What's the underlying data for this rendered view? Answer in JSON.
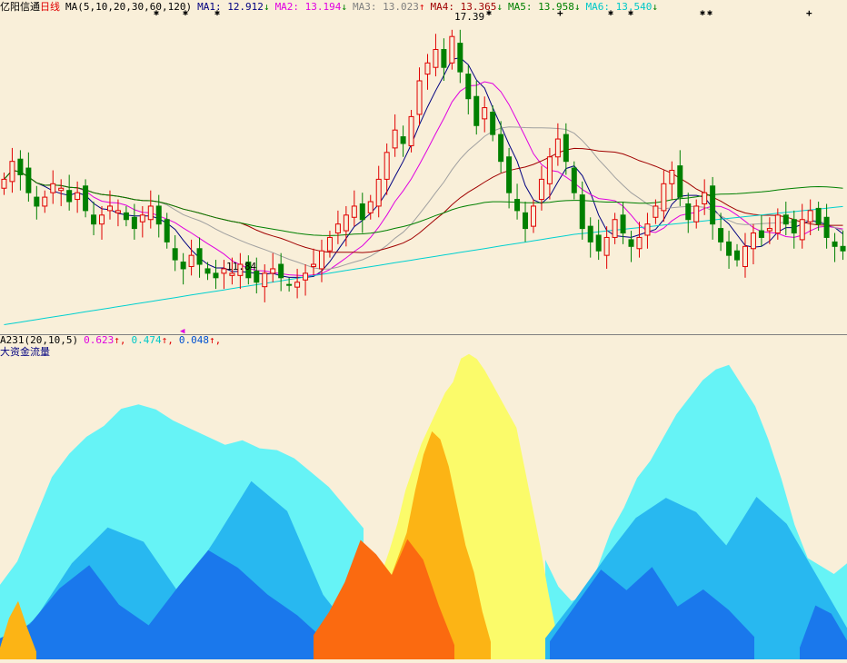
{
  "stock": {
    "name": "亿阳信通",
    "period": "日线"
  },
  "ma_header": {
    "label": "MA(5,10,20,30,60,120)",
    "items": [
      {
        "key": "MA1:",
        "value": "12.912",
        "arrow": "↓",
        "color": "#000080"
      },
      {
        "key": "MA2:",
        "value": "13.194",
        "arrow": "↓",
        "color": "#e000e0"
      },
      {
        "key": "MA3:",
        "value": "13.023",
        "arrow": "↑",
        "color": "#808080"
      },
      {
        "key": "MA4:",
        "value": "13.365",
        "arrow": "↓",
        "color": "#a00000"
      },
      {
        "key": "MA5:",
        "value": "13.958",
        "arrow": "↓",
        "color": "#008000"
      },
      {
        "key": "MA6:",
        "value": "13.540",
        "arrow": "↓",
        "color": "#00c8c8"
      }
    ]
  },
  "high_label": "17.39",
  "low_label": "11.84",
  "sub_header": {
    "label": "A231(20,10,5)",
    "values": [
      {
        "value": "0.623",
        "arrow": "↑",
        "color": "#e000e0"
      },
      {
        "value": "0.474",
        "arrow": "↑",
        "color": "#00c8c8"
      },
      {
        "value": "0.048",
        "arrow": "↑",
        "color": "#0050d0"
      }
    ],
    "title": "大资金流量"
  },
  "colors": {
    "background": "#f9efd9",
    "up": "#e00000",
    "down": "#008000"
  },
  "chart_data": {
    "type": "candlestick",
    "closes": [
      14.2,
      14.6,
      14.3,
      13.9,
      13.6,
      13.8,
      14.1,
      14.0,
      13.7,
      13.9,
      13.5,
      13.2,
      13.4,
      13.6,
      13.5,
      13.3,
      13.1,
      13.4,
      13.6,
      13.2,
      12.8,
      12.4,
      12.2,
      12.5,
      12.3,
      12.1,
      12.0,
      12.2,
      12.1,
      12.3,
      12.0,
      11.9,
      12.1,
      12.2,
      12.0,
      11.84,
      11.9,
      12.1,
      12.3,
      12.6,
      12.9,
      13.2,
      13.4,
      13.6,
      13.3,
      13.7,
      14.2,
      14.8,
      15.3,
      15.0,
      15.6,
      16.4,
      16.8,
      17.1,
      16.7,
      17.39,
      16.6,
      16.0,
      15.4,
      15.8,
      15.2,
      14.6,
      13.9,
      13.5,
      13.1,
      13.6,
      14.2,
      14.7,
      15.1,
      14.6,
      13.9,
      13.1,
      12.8,
      12.6,
      12.9,
      13.3,
      13.0,
      12.7,
      12.9,
      13.2,
      13.6,
      14.1,
      14.4,
      13.8,
      13.3,
      13.6,
      13.9,
      13.2,
      12.8,
      12.5,
      12.4,
      12.7,
      13.0,
      12.9,
      13.1,
      13.4,
      13.2,
      13.0,
      13.3,
      13.5,
      13.2,
      12.9,
      12.7,
      12.6
    ],
    "ma_values": {
      "MA1": 12.912,
      "MA2": 13.194,
      "MA3": 13.023,
      "MA4": 13.365,
      "MA5": 13.958,
      "MA6": 13.54
    },
    "high": 17.39,
    "low": 11.84
  },
  "flow_data": {
    "type": "area",
    "yellow": [
      0.1,
      0.12,
      0.15,
      0.2,
      0.28,
      0.36,
      0.45,
      0.52,
      0.6,
      0.68,
      0.74,
      0.8,
      0.86,
      0.9,
      0.94,
      0.96,
      0.95,
      0.92,
      0.88,
      0.84,
      0.8,
      0.72,
      0.6,
      0.48,
      0.36,
      0.22,
      0.1
    ],
    "orange": [
      0.05,
      0.08,
      0.12,
      0.18,
      0.26,
      0.34,
      0.42,
      0.52,
      0.64,
      0.72,
      0.7,
      0.62,
      0.5,
      0.38,
      0.26,
      0.14,
      0.05
    ],
    "cyan": [
      0.22,
      0.3,
      0.44,
      0.58,
      0.66,
      0.72,
      0.76,
      0.78,
      0.8,
      0.79,
      0.76,
      0.74,
      0.72,
      0.7,
      0.68,
      0.66,
      0.66,
      0.64,
      0.6,
      0.56,
      0.5,
      0.4,
      0.3,
      0.22,
      0.18,
      0.2,
      0.3,
      0.42,
      0.5,
      0.56,
      0.62,
      0.7,
      0.78,
      0.84,
      0.9,
      0.94,
      0.92,
      0.86,
      0.8,
      0.7,
      0.58,
      0.44,
      0.34,
      0.28,
      0.26,
      0.3
    ]
  }
}
